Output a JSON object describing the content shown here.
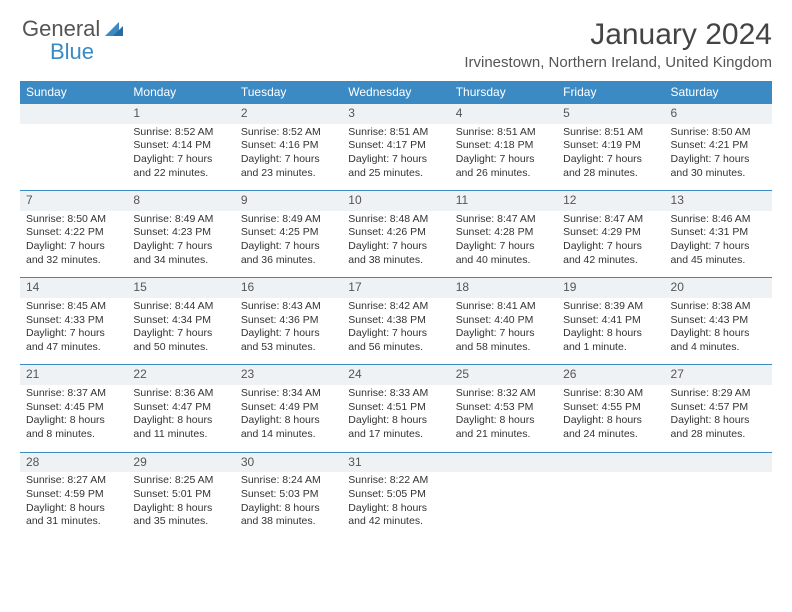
{
  "brand": {
    "word1": "General",
    "word2": "Blue"
  },
  "title": "January 2024",
  "location": "Irvinestown, Northern Ireland, United Kingdom",
  "colors": {
    "header_bg": "#3b8ac4",
    "daynum_bg": "#eef2f5",
    "daynum_border": "#3b8ac4",
    "text": "#333333"
  },
  "weekdays": [
    "Sunday",
    "Monday",
    "Tuesday",
    "Wednesday",
    "Thursday",
    "Friday",
    "Saturday"
  ],
  "weeks": [
    {
      "nums": [
        "",
        "1",
        "2",
        "3",
        "4",
        "5",
        "6"
      ],
      "cells": [
        {
          "sunrise": "",
          "sunset": "",
          "day1": "",
          "day2": ""
        },
        {
          "sunrise": "Sunrise: 8:52 AM",
          "sunset": "Sunset: 4:14 PM",
          "day1": "Daylight: 7 hours",
          "day2": "and 22 minutes."
        },
        {
          "sunrise": "Sunrise: 8:52 AM",
          "sunset": "Sunset: 4:16 PM",
          "day1": "Daylight: 7 hours",
          "day2": "and 23 minutes."
        },
        {
          "sunrise": "Sunrise: 8:51 AM",
          "sunset": "Sunset: 4:17 PM",
          "day1": "Daylight: 7 hours",
          "day2": "and 25 minutes."
        },
        {
          "sunrise": "Sunrise: 8:51 AM",
          "sunset": "Sunset: 4:18 PM",
          "day1": "Daylight: 7 hours",
          "day2": "and 26 minutes."
        },
        {
          "sunrise": "Sunrise: 8:51 AM",
          "sunset": "Sunset: 4:19 PM",
          "day1": "Daylight: 7 hours",
          "day2": "and 28 minutes."
        },
        {
          "sunrise": "Sunrise: 8:50 AM",
          "sunset": "Sunset: 4:21 PM",
          "day1": "Daylight: 7 hours",
          "day2": "and 30 minutes."
        }
      ]
    },
    {
      "nums": [
        "7",
        "8",
        "9",
        "10",
        "11",
        "12",
        "13"
      ],
      "cells": [
        {
          "sunrise": "Sunrise: 8:50 AM",
          "sunset": "Sunset: 4:22 PM",
          "day1": "Daylight: 7 hours",
          "day2": "and 32 minutes."
        },
        {
          "sunrise": "Sunrise: 8:49 AM",
          "sunset": "Sunset: 4:23 PM",
          "day1": "Daylight: 7 hours",
          "day2": "and 34 minutes."
        },
        {
          "sunrise": "Sunrise: 8:49 AM",
          "sunset": "Sunset: 4:25 PM",
          "day1": "Daylight: 7 hours",
          "day2": "and 36 minutes."
        },
        {
          "sunrise": "Sunrise: 8:48 AM",
          "sunset": "Sunset: 4:26 PM",
          "day1": "Daylight: 7 hours",
          "day2": "and 38 minutes."
        },
        {
          "sunrise": "Sunrise: 8:47 AM",
          "sunset": "Sunset: 4:28 PM",
          "day1": "Daylight: 7 hours",
          "day2": "and 40 minutes."
        },
        {
          "sunrise": "Sunrise: 8:47 AM",
          "sunset": "Sunset: 4:29 PM",
          "day1": "Daylight: 7 hours",
          "day2": "and 42 minutes."
        },
        {
          "sunrise": "Sunrise: 8:46 AM",
          "sunset": "Sunset: 4:31 PM",
          "day1": "Daylight: 7 hours",
          "day2": "and 45 minutes."
        }
      ]
    },
    {
      "nums": [
        "14",
        "15",
        "16",
        "17",
        "18",
        "19",
        "20"
      ],
      "cells": [
        {
          "sunrise": "Sunrise: 8:45 AM",
          "sunset": "Sunset: 4:33 PM",
          "day1": "Daylight: 7 hours",
          "day2": "and 47 minutes."
        },
        {
          "sunrise": "Sunrise: 8:44 AM",
          "sunset": "Sunset: 4:34 PM",
          "day1": "Daylight: 7 hours",
          "day2": "and 50 minutes."
        },
        {
          "sunrise": "Sunrise: 8:43 AM",
          "sunset": "Sunset: 4:36 PM",
          "day1": "Daylight: 7 hours",
          "day2": "and 53 minutes."
        },
        {
          "sunrise": "Sunrise: 8:42 AM",
          "sunset": "Sunset: 4:38 PM",
          "day1": "Daylight: 7 hours",
          "day2": "and 56 minutes."
        },
        {
          "sunrise": "Sunrise: 8:41 AM",
          "sunset": "Sunset: 4:40 PM",
          "day1": "Daylight: 7 hours",
          "day2": "and 58 minutes."
        },
        {
          "sunrise": "Sunrise: 8:39 AM",
          "sunset": "Sunset: 4:41 PM",
          "day1": "Daylight: 8 hours",
          "day2": "and 1 minute."
        },
        {
          "sunrise": "Sunrise: 8:38 AM",
          "sunset": "Sunset: 4:43 PM",
          "day1": "Daylight: 8 hours",
          "day2": "and 4 minutes."
        }
      ]
    },
    {
      "nums": [
        "21",
        "22",
        "23",
        "24",
        "25",
        "26",
        "27"
      ],
      "cells": [
        {
          "sunrise": "Sunrise: 8:37 AM",
          "sunset": "Sunset: 4:45 PM",
          "day1": "Daylight: 8 hours",
          "day2": "and 8 minutes."
        },
        {
          "sunrise": "Sunrise: 8:36 AM",
          "sunset": "Sunset: 4:47 PM",
          "day1": "Daylight: 8 hours",
          "day2": "and 11 minutes."
        },
        {
          "sunrise": "Sunrise: 8:34 AM",
          "sunset": "Sunset: 4:49 PM",
          "day1": "Daylight: 8 hours",
          "day2": "and 14 minutes."
        },
        {
          "sunrise": "Sunrise: 8:33 AM",
          "sunset": "Sunset: 4:51 PM",
          "day1": "Daylight: 8 hours",
          "day2": "and 17 minutes."
        },
        {
          "sunrise": "Sunrise: 8:32 AM",
          "sunset": "Sunset: 4:53 PM",
          "day1": "Daylight: 8 hours",
          "day2": "and 21 minutes."
        },
        {
          "sunrise": "Sunrise: 8:30 AM",
          "sunset": "Sunset: 4:55 PM",
          "day1": "Daylight: 8 hours",
          "day2": "and 24 minutes."
        },
        {
          "sunrise": "Sunrise: 8:29 AM",
          "sunset": "Sunset: 4:57 PM",
          "day1": "Daylight: 8 hours",
          "day2": "and 28 minutes."
        }
      ]
    },
    {
      "nums": [
        "28",
        "29",
        "30",
        "31",
        "",
        "",
        ""
      ],
      "cells": [
        {
          "sunrise": "Sunrise: 8:27 AM",
          "sunset": "Sunset: 4:59 PM",
          "day1": "Daylight: 8 hours",
          "day2": "and 31 minutes."
        },
        {
          "sunrise": "Sunrise: 8:25 AM",
          "sunset": "Sunset: 5:01 PM",
          "day1": "Daylight: 8 hours",
          "day2": "and 35 minutes."
        },
        {
          "sunrise": "Sunrise: 8:24 AM",
          "sunset": "Sunset: 5:03 PM",
          "day1": "Daylight: 8 hours",
          "day2": "and 38 minutes."
        },
        {
          "sunrise": "Sunrise: 8:22 AM",
          "sunset": "Sunset: 5:05 PM",
          "day1": "Daylight: 8 hours",
          "day2": "and 42 minutes."
        },
        {
          "sunrise": "",
          "sunset": "",
          "day1": "",
          "day2": ""
        },
        {
          "sunrise": "",
          "sunset": "",
          "day1": "",
          "day2": ""
        },
        {
          "sunrise": "",
          "sunset": "",
          "day1": "",
          "day2": ""
        }
      ]
    }
  ]
}
